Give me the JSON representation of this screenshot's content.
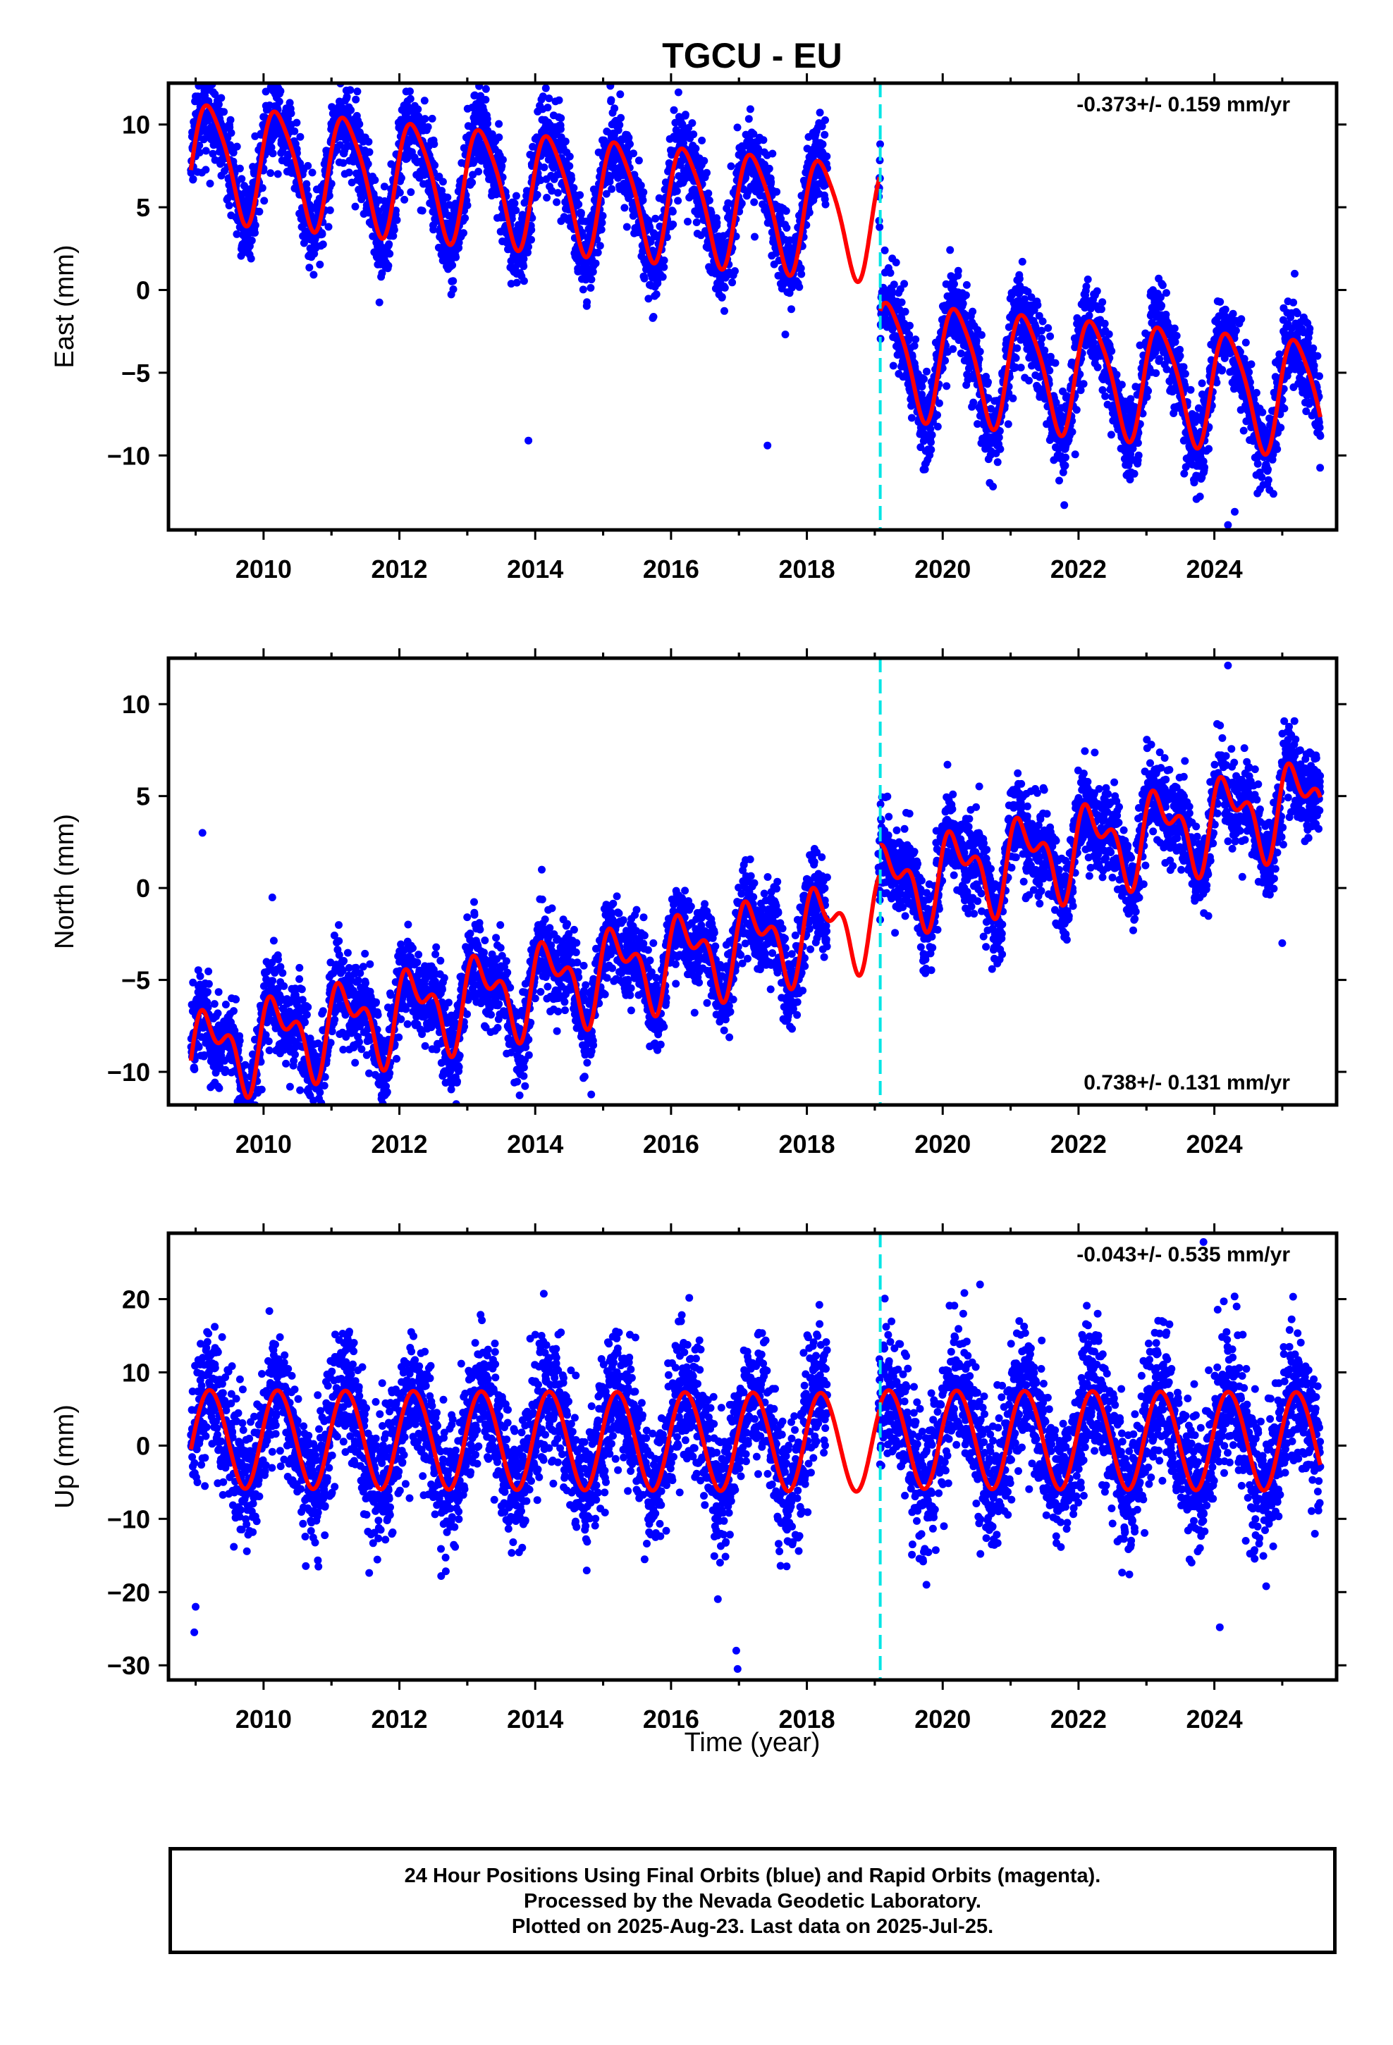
{
  "title": "TGCU - EU",
  "x_axis_label": "Time (year)",
  "colors": {
    "observations": "#0000ff",
    "model": "#ff0000",
    "event_line": "#00e5e5",
    "frame": "#000000"
  },
  "footer": {
    "line1": "24 Hour Positions Using Final Orbits (blue) and Rapid Orbits (magenta).",
    "line2": "Processed by the Nevada Geodetic Laboratory.",
    "line3": "Plotted on 2025-Aug-23. Last data on 2025-Jul-25."
  },
  "chart_data": [
    {
      "type": "scatter",
      "component": "East",
      "ylabel": "East (mm)",
      "rate_label": "-0.373+/- 0.159 mm/yr",
      "rate_position": "top-right",
      "xlim": [
        2008.6,
        2025.8
      ],
      "ylim": [
        -14.5,
        12.5
      ],
      "xticks": [
        "2010",
        "2012",
        "2014",
        "2016",
        "2018",
        "2020",
        "2022",
        "2024"
      ],
      "yticks": [
        "10",
        "5",
        "0",
        "-5",
        "-10"
      ],
      "event_line_year": 2019.08,
      "data_start_year": 2008.93,
      "data_end_year": 2025.56,
      "data_gap": [
        2018.3,
        2019.05
      ],
      "model": {
        "pre_event_offset_mm": 4.2,
        "post_event_offset_mm": -4.0,
        "rate_mm_per_yr": -0.373,
        "annual_amplitude_mm": 3.4,
        "semiannual_amplitude_mm": 0.6,
        "noise_sigma_mm": 1.3
      },
      "outliers": [
        [
          2009.0,
          11.7
        ],
        [
          2013.27,
          11.5
        ],
        [
          2013.9,
          -9.1
        ],
        [
          2017.42,
          -9.4
        ],
        [
          2024.2,
          -14.2
        ],
        [
          2024.3,
          -13.4
        ],
        [
          2021.79,
          -13.0
        ]
      ]
    },
    {
      "type": "scatter",
      "component": "North",
      "ylabel": "North (mm)",
      "rate_label": "0.738+/- 0.131 mm/yr",
      "rate_position": "bottom-right",
      "xlim": [
        2008.6,
        2025.8
      ],
      "ylim": [
        -11.8,
        12.5
      ],
      "xticks": [
        "2010",
        "2012",
        "2014",
        "2016",
        "2018",
        "2020",
        "2022",
        "2024"
      ],
      "yticks": [
        "10",
        "5",
        "0",
        "-5",
        "-10"
      ],
      "event_line_year": 2019.08,
      "data_start_year": 2008.93,
      "data_end_year": 2025.56,
      "data_gap": [
        2018.3,
        2019.05
      ],
      "model": {
        "pre_event_offset_mm": -1.6,
        "post_event_offset_mm": 0.0,
        "rate_mm_per_yr": 0.738,
        "annual_amplitude_mm": 1.9,
        "semiannual_amplitude_mm": 1.2,
        "noise_sigma_mm": 1.2
      },
      "outliers": [
        [
          2009.1,
          3.0
        ],
        [
          2009.68,
          -11.4
        ],
        [
          2024.2,
          12.1
        ],
        [
          2017.8,
          -4.9
        ],
        [
          2025.0,
          -3.0
        ]
      ]
    },
    {
      "type": "scatter",
      "component": "Up",
      "ylabel": "Up (mm)",
      "rate_label": "-0.043+/- 0.535 mm/yr",
      "rate_position": "top-right",
      "xlim": [
        2008.6,
        2025.8
      ],
      "ylim": [
        -32,
        29
      ],
      "xticks": [
        "2010",
        "2012",
        "2014",
        "2016",
        "2018",
        "2020",
        "2022",
        "2024"
      ],
      "yticks": [
        "20",
        "10",
        "0",
        "-10",
        "-20",
        "-30"
      ],
      "event_line_year": 2019.08,
      "data_start_year": 2008.93,
      "data_end_year": 2025.56,
      "data_gap": [
        2018.3,
        2019.05
      ],
      "model": {
        "pre_event_offset_mm": 0.6,
        "post_event_offset_mm": 1.0,
        "rate_mm_per_yr": -0.043,
        "annual_amplitude_mm": 6.7,
        "semiannual_amplitude_mm": 0.3,
        "noise_sigma_mm": 4.6
      },
      "outliers": [
        [
          2008.98,
          -25.5
        ],
        [
          2009.0,
          -22.0
        ],
        [
          2016.96,
          -28.0
        ],
        [
          2016.98,
          -30.5
        ],
        [
          2023.84,
          27.8
        ],
        [
          2024.08,
          -24.8
        ],
        [
          2020.55,
          22.0
        ]
      ]
    }
  ]
}
